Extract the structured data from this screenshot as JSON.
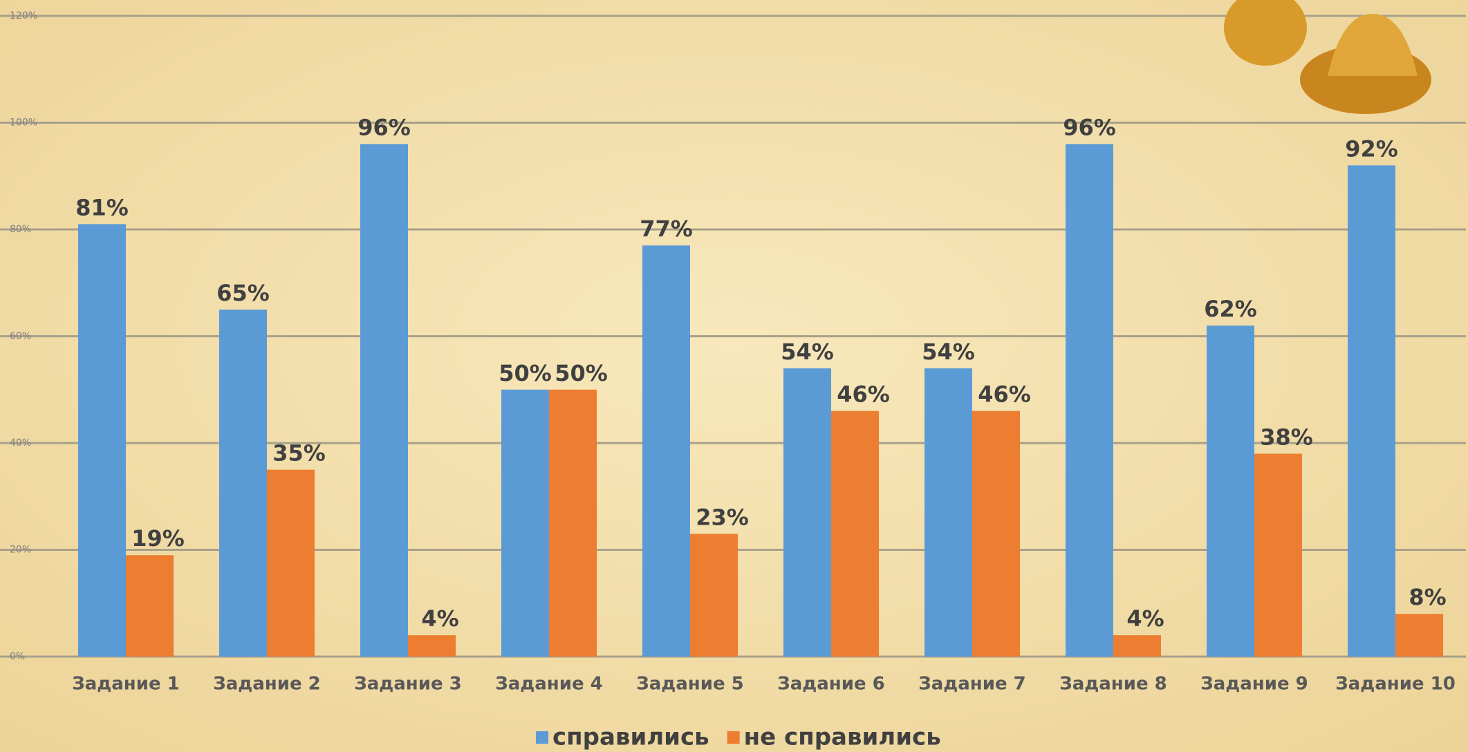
{
  "chart_data": {
    "type": "bar",
    "categories": [
      "Задание 1",
      "Задание 2",
      "Задание 3",
      "Задание 4",
      "Задание 5",
      "Задание 6",
      "Задание 7",
      "Задание 8",
      "Задание 9",
      "Задание 10"
    ],
    "series": [
      {
        "name": "справились",
        "color": "#5b9bd5",
        "values": [
          81,
          65,
          96,
          50,
          77,
          54,
          54,
          96,
          62,
          92
        ],
        "value_labels": [
          "81%",
          "65%",
          "96%",
          "50%",
          "77%",
          "54%",
          "54%",
          "96%",
          "62%",
          "92%"
        ]
      },
      {
        "name": "не справились",
        "color": "#ed7d31",
        "values": [
          19,
          35,
          4,
          50,
          23,
          46,
          46,
          4,
          38,
          8
        ],
        "value_labels": [
          "19%",
          "35%",
          "4%",
          "50%",
          "23%",
          "46%",
          "46%",
          "4%",
          "38%",
          "8%"
        ]
      }
    ],
    "ylim": [
      0,
      120
    ],
    "yticks": [
      {
        "value": 0,
        "label": "0%"
      },
      {
        "value": 20,
        "label": "20%"
      },
      {
        "value": 40,
        "label": "40%"
      },
      {
        "value": 60,
        "label": "60%"
      },
      {
        "value": 80,
        "label": "80%"
      },
      {
        "value": 100,
        "label": "100%"
      },
      {
        "value": 120,
        "label": "120%"
      }
    ],
    "grid": true,
    "legend": "bottom"
  }
}
